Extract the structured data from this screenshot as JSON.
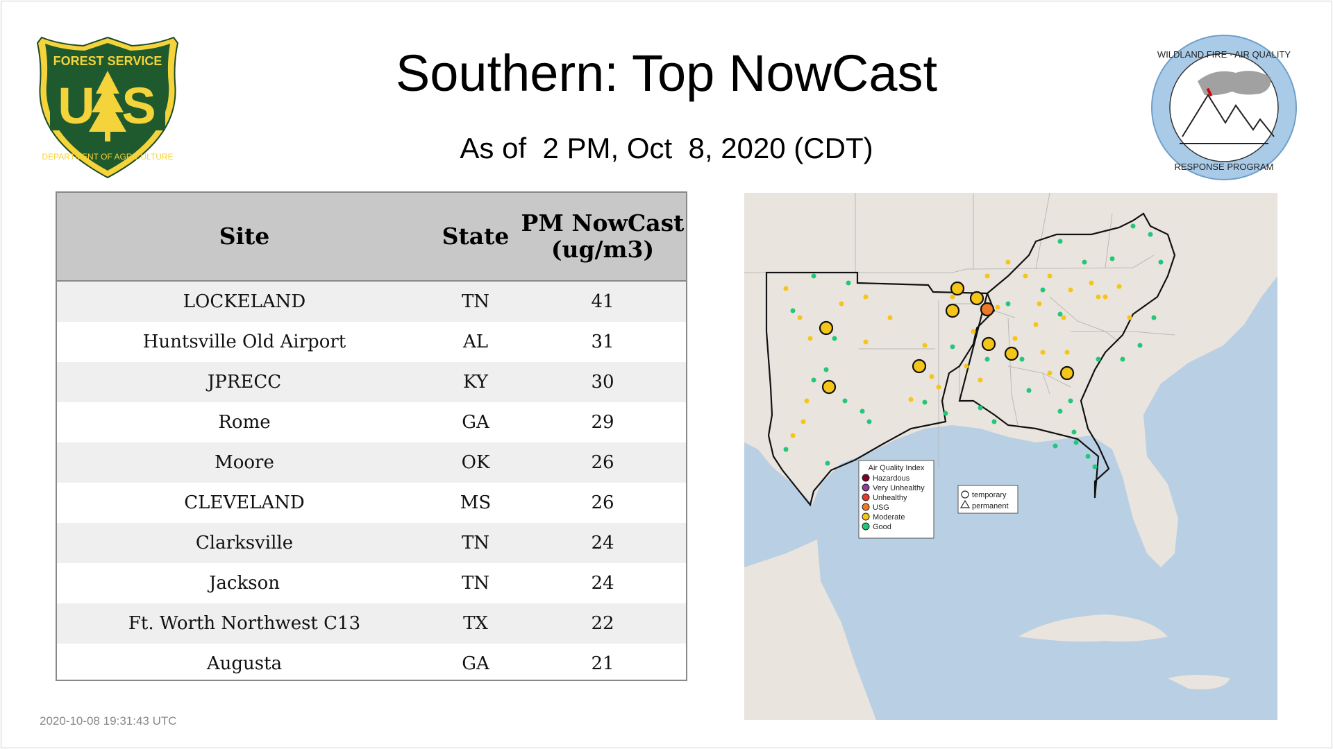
{
  "header": {
    "title": "Southern: Top NowCast",
    "subtitle": "As of  2 PM, Oct  8, 2020 (CDT)"
  },
  "logos": {
    "forest_service": {
      "top_text": "FOREST SERVICE",
      "letters": "US",
      "bottom_text": "DEPARTMENT OF AGRICULTURE"
    },
    "wildland_fire": {
      "top_text": "WILDLAND FIRE · AIR QUALITY",
      "bottom_text": "RESPONSE PROGRAM"
    }
  },
  "table": {
    "columns": [
      "Site",
      "State",
      "PM NowCast (ug/m3)"
    ],
    "rows": [
      {
        "site": "LOCKELAND",
        "state": "TN",
        "value": "41"
      },
      {
        "site": "Huntsville Old Airport",
        "state": "AL",
        "value": "31"
      },
      {
        "site": "JPRECC",
        "state": "KY",
        "value": "30"
      },
      {
        "site": "Rome",
        "state": "GA",
        "value": "29"
      },
      {
        "site": "Moore",
        "state": "OK",
        "value": "26"
      },
      {
        "site": "CLEVELAND",
        "state": "MS",
        "value": "26"
      },
      {
        "site": "Clarksville",
        "state": "TN",
        "value": "24"
      },
      {
        "site": "Jackson",
        "state": "TN",
        "value": "24"
      },
      {
        "site": "Ft. Worth Northwest C13",
        "state": "TX",
        "value": "22"
      },
      {
        "site": "Augusta",
        "state": "GA",
        "value": "21"
      }
    ]
  },
  "map": {
    "legend": {
      "title": "Air Quality Index",
      "items": [
        {
          "label": "Hazardous",
          "color": "#7e0023"
        },
        {
          "label": "Very Unhealthy",
          "color": "#8f3f97"
        },
        {
          "label": "Unhealthy",
          "color": "#e83a2a"
        },
        {
          "label": "USG",
          "color": "#ef7a25"
        },
        {
          "label": "Moderate",
          "color": "#f5c518"
        },
        {
          "label": "Good",
          "color": "#22c77a"
        }
      ]
    },
    "shape_legend": {
      "temporary": "temporary",
      "permanent": "permanent"
    }
  },
  "footer": {
    "timestamp": "2020-10-08 19:31:43 UTC"
  }
}
